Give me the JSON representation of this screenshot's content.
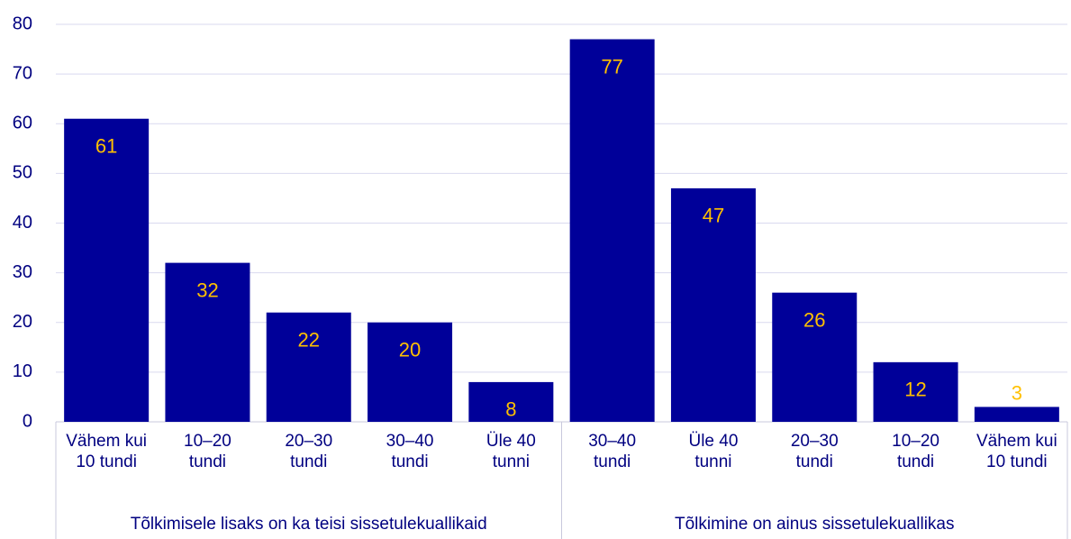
{
  "chart_data": {
    "type": "bar",
    "groups": [
      {
        "name": "Tõlkimisele lisaks on ka teisi sissetulekuallikaid",
        "categories": [
          "Vähem kui 10 tundi",
          "10–20 tundi",
          "20–30 tundi",
          "30–40 tundi",
          "Üle 40 tunni"
        ],
        "values": [
          61,
          32,
          22,
          20,
          8
        ]
      },
      {
        "name": "Tõlkimine on ainus sissetulekuallikas",
        "categories": [
          "30–40 tundi",
          "Üle 40 tunni",
          "20–30 tundi",
          "10–20 tundi",
          "Vähem kui 10 tundi"
        ],
        "values": [
          77,
          47,
          26,
          12,
          3
        ]
      }
    ],
    "color": "#000099",
    "label_color": "#ffc000",
    "ylim": [
      0,
      80
    ],
    "yticks": [
      0,
      10,
      20,
      30,
      40,
      50,
      60,
      70,
      80
    ],
    "grid": true
  }
}
